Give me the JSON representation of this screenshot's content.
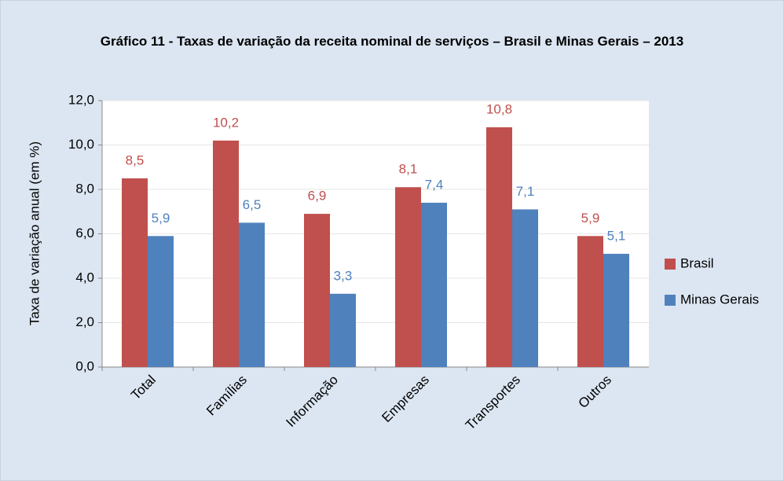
{
  "chart_data": {
    "type": "bar",
    "title": "Gráfico 11 - Taxas de variação da receita nominal de serviços – Brasil e Minas Gerais – 2013",
    "y_label": "Taxa de variação anual (em %)",
    "categories": [
      "Total",
      "Famílias",
      "Informação",
      "Empresas",
      "Transportes",
      "Outros"
    ],
    "series": [
      {
        "name": "Brasil",
        "color": "#c0504d",
        "values": [
          8.5,
          10.2,
          6.9,
          8.1,
          10.8,
          5.9
        ],
        "value_labels": [
          "8,5",
          "10,2",
          "6,9",
          "8,1",
          "10,8",
          "5,9"
        ]
      },
      {
        "name": "Minas Gerais",
        "color": "#4f81bd",
        "values": [
          5.9,
          6.5,
          3.3,
          7.4,
          7.1,
          5.1
        ],
        "value_labels": [
          "5,9",
          "6,5",
          "3,3",
          "7,4",
          "7,1",
          "5,1"
        ]
      }
    ],
    "ylim": [
      0,
      12
    ],
    "yticks": [
      {
        "value": 0,
        "label": "0,0"
      },
      {
        "value": 2,
        "label": "2,0"
      },
      {
        "value": 4,
        "label": "4,0"
      },
      {
        "value": 6,
        "label": "6,0"
      },
      {
        "value": 8,
        "label": "8,0"
      },
      {
        "value": 10,
        "label": "10,0"
      },
      {
        "value": 12,
        "label": "12,0"
      }
    ],
    "grid": true,
    "legend": "right"
  }
}
